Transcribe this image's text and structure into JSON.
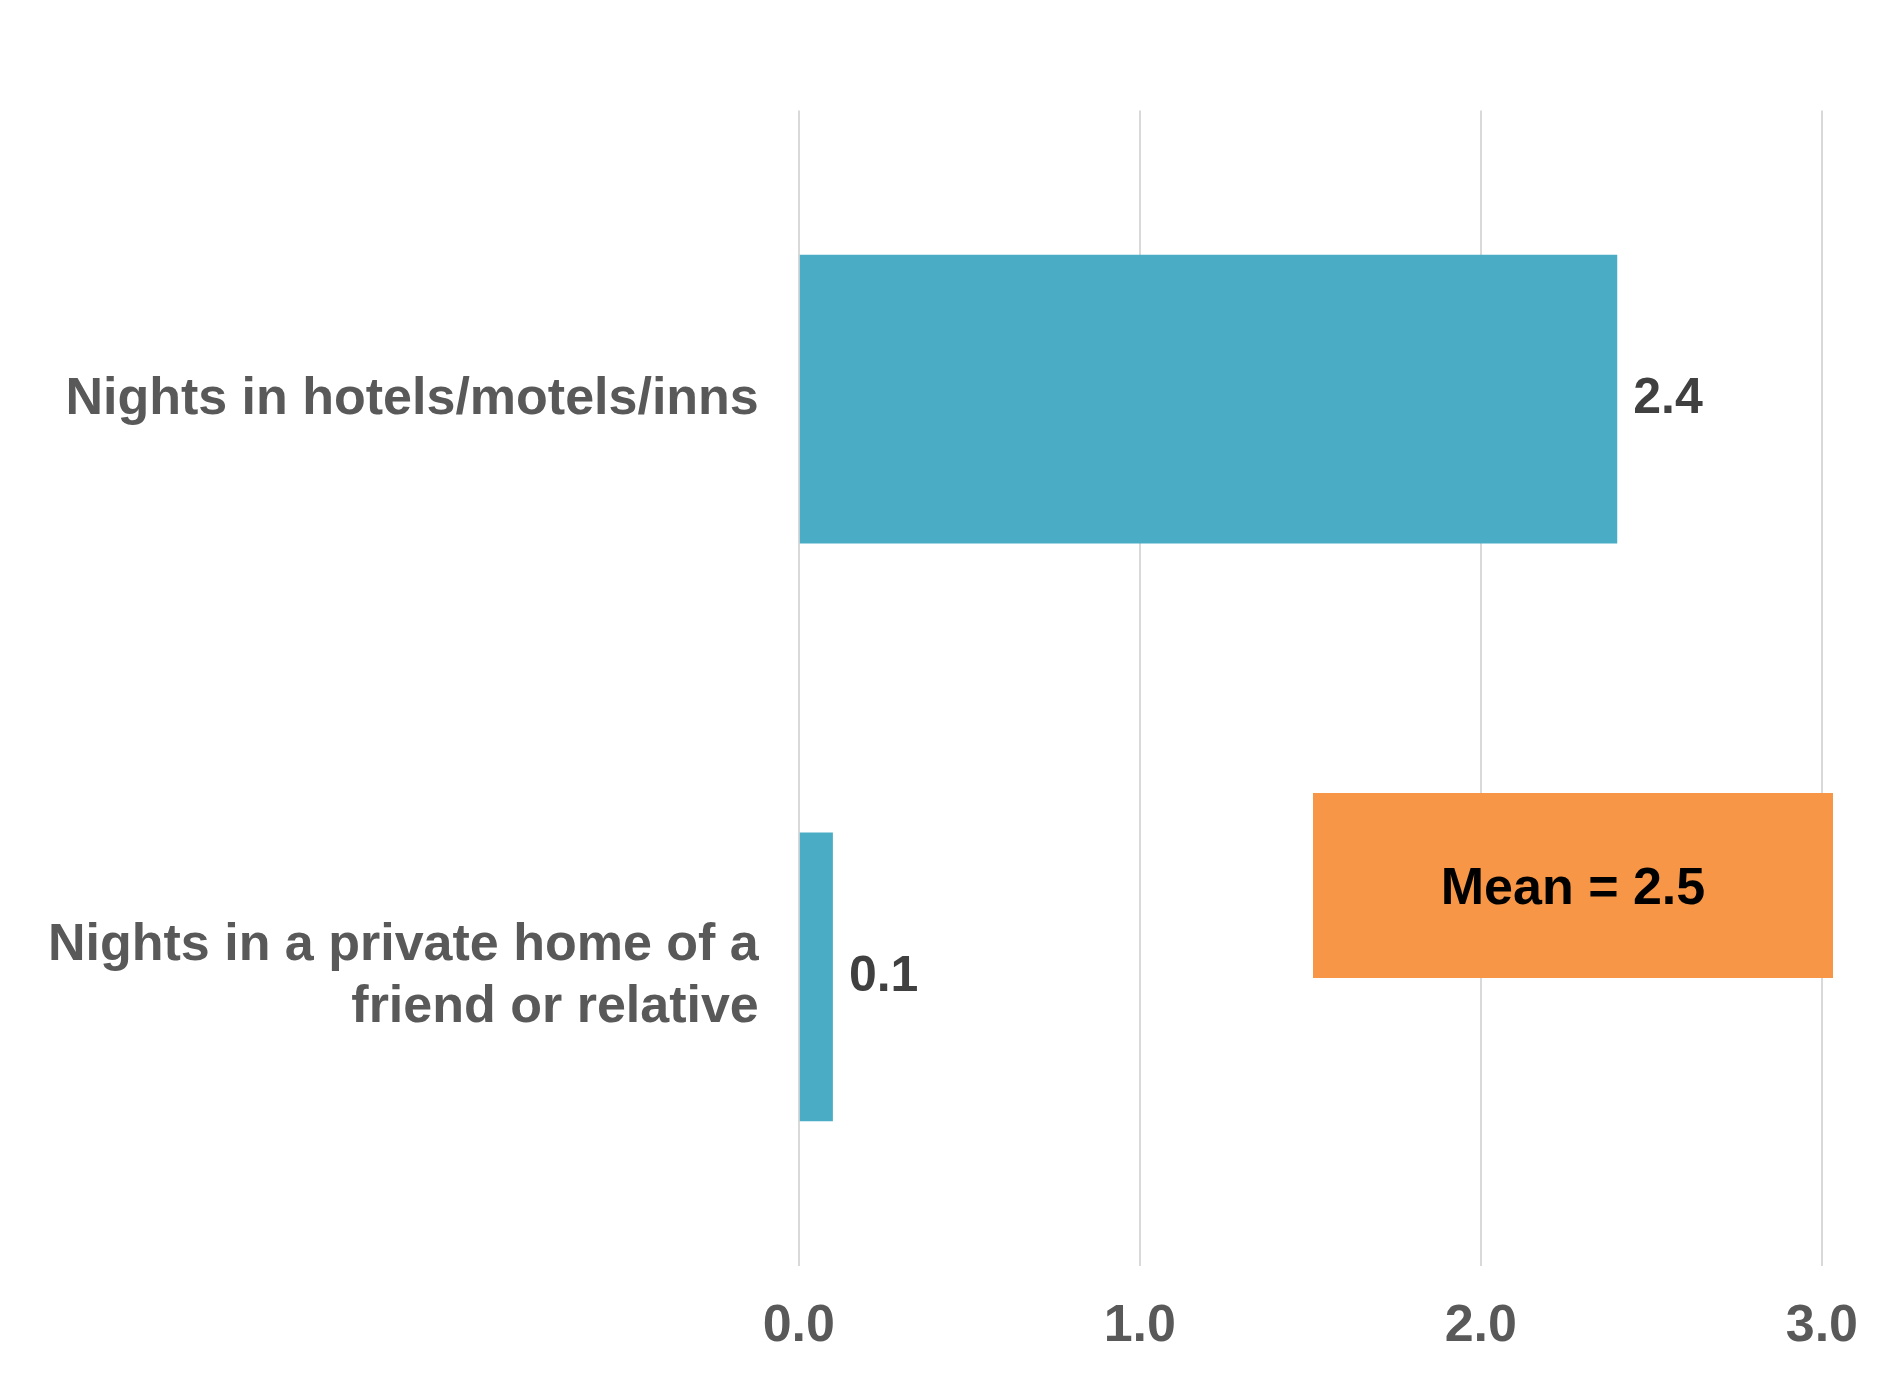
{
  "chart_data": {
    "type": "bar",
    "orientation": "horizontal",
    "categories": [
      "Nights in hotels/motels/inns",
      "Nights in a private home of a friend or relative"
    ],
    "values": [
      2.4,
      0.1
    ],
    "color": "#4bacc6",
    "data_labels": true,
    "xlim": [
      0,
      3
    ],
    "xticks": [
      {
        "value": 0,
        "label": "0.0"
      },
      {
        "value": 1,
        "label": "1.0"
      },
      {
        "value": 2,
        "label": "2.0"
      },
      {
        "value": 3,
        "label": "3.0"
      }
    ],
    "grid": "x",
    "legend": false,
    "annotations": [
      "Mean = 2.5"
    ]
  }
}
